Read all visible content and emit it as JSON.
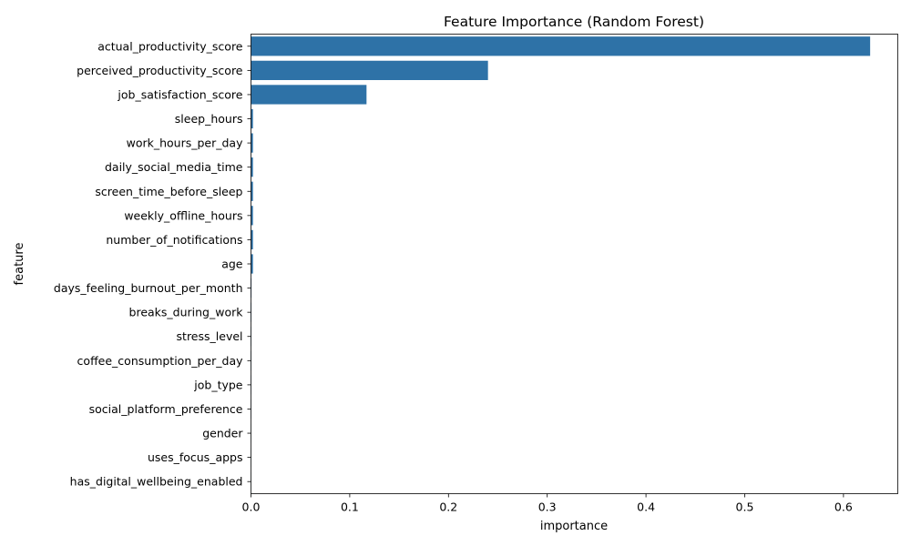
{
  "chart_data": {
    "type": "bar",
    "orientation": "horizontal",
    "title": "Feature Importance (Random Forest)",
    "xlabel": "importance",
    "ylabel": "feature",
    "xlim": [
      0,
      0.655
    ],
    "x_ticks": [
      0.0,
      0.1,
      0.2,
      0.3,
      0.4,
      0.5,
      0.6
    ],
    "x_tick_labels": [
      "0.0",
      "0.1",
      "0.2",
      "0.3",
      "0.4",
      "0.5",
      "0.6"
    ],
    "grid": false,
    "bar_color": "#2e72a7",
    "categories": [
      "actual_productivity_score",
      "perceived_productivity_score",
      "job_satisfaction_score",
      "sleep_hours",
      "work_hours_per_day",
      "daily_social_media_time",
      "screen_time_before_sleep",
      "weekly_offline_hours",
      "number_of_notifications",
      "age",
      "days_feeling_burnout_per_month",
      "breaks_during_work",
      "stress_level",
      "coffee_consumption_per_day",
      "job_type",
      "social_platform_preference",
      "gender",
      "uses_focus_apps",
      "has_digital_wellbeing_enabled"
    ],
    "values": [
      0.627,
      0.24,
      0.117,
      0.002,
      0.002,
      0.002,
      0.002,
      0.002,
      0.002,
      0.002,
      0.0005,
      0.0004,
      0.0003,
      0.0003,
      0.0002,
      0.0002,
      0.0001,
      0.0001,
      0.0001
    ]
  }
}
